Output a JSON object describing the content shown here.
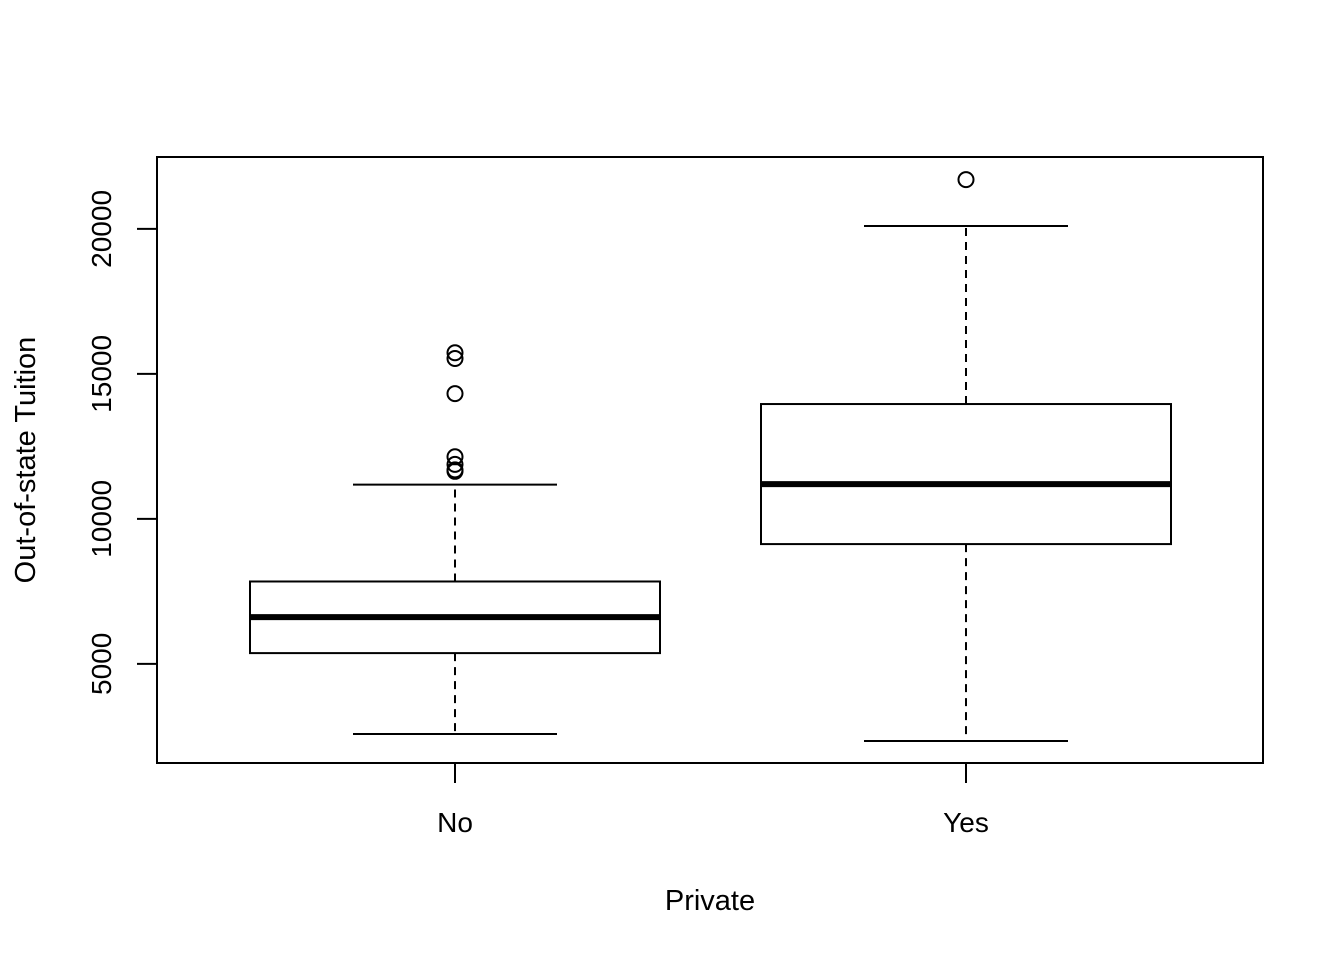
{
  "chart_data": {
    "type": "box",
    "title": "",
    "xlabel": "Private",
    "ylabel": "Out-of-state Tuition",
    "categories": [
      "No",
      "Yes"
    ],
    "boxes": [
      {
        "category": "No",
        "whisker_low": 2580,
        "q1": 5370,
        "median": 6610,
        "q3": 7840,
        "whisker_high": 11180,
        "outliers": [
          15730,
          15530,
          14320,
          12140,
          11880,
          11690,
          11640
        ]
      },
      {
        "category": "Yes",
        "whisker_low": 2340,
        "q1": 9130,
        "median": 11200,
        "q3": 13960,
        "whisker_high": 20100,
        "outliers": [
          21700
        ]
      }
    ],
    "yticks": [
      5000,
      10000,
      15000,
      20000
    ],
    "ytick_labels": [
      "5000",
      "10000",
      "15000",
      "20000"
    ],
    "ylim": [
      1580,
      22480
    ],
    "grid": false,
    "legend": "none"
  }
}
